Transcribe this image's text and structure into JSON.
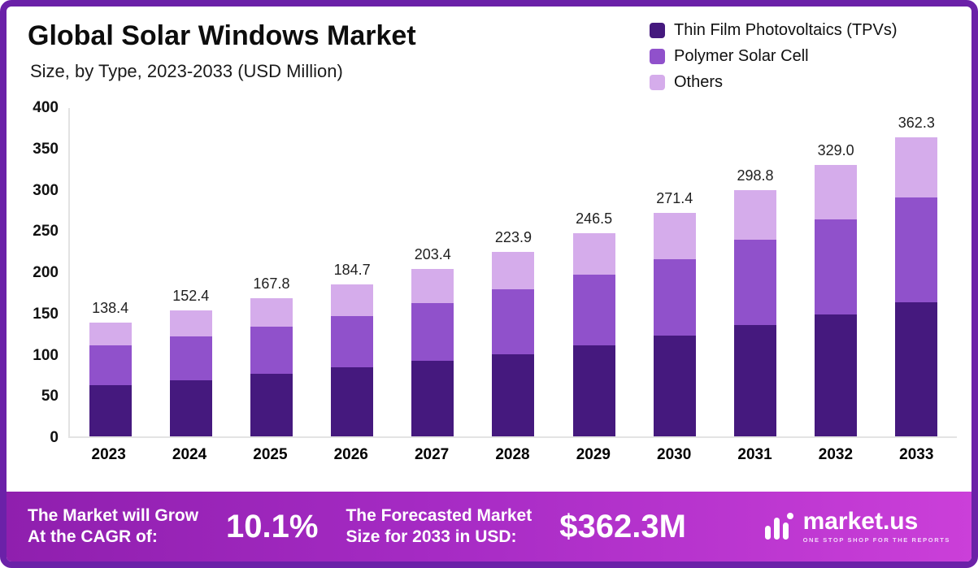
{
  "header": {
    "title": "Global Solar Windows Market",
    "subtitle": "Size, by Type, 2023-2033 (USD Million)"
  },
  "legend": [
    {
      "label": "Thin Film Photovoltaics (TPVs)",
      "color": "#45197e"
    },
    {
      "label": "Polymer Solar Cell",
      "color": "#9051cb"
    },
    {
      "label": "Others",
      "color": "#d5aceb"
    }
  ],
  "chart_data": {
    "type": "bar",
    "stacked": true,
    "title": "Global Solar Windows Market Size, by Type, 2023-2033 (USD Million)",
    "categories": [
      "2023",
      "2024",
      "2025",
      "2026",
      "2027",
      "2028",
      "2029",
      "2030",
      "2031",
      "2032",
      "2033"
    ],
    "series": [
      {
        "name": "Thin Film Photovoltaics (TPVs)",
        "color": "#45197e",
        "values": [
          62,
          68,
          76,
          84,
          92,
          100,
          110,
          122,
          135,
          148,
          163
        ]
      },
      {
        "name": "Polymer Solar Cell",
        "color": "#9051cb",
        "values": [
          48,
          53,
          57,
          62,
          70,
          78,
          86,
          93,
          103,
          115,
          127
        ]
      },
      {
        "name": "Others",
        "color": "#d5aceb",
        "values": [
          28.4,
          31.4,
          34.8,
          38.7,
          41.4,
          45.9,
          50.5,
          56.4,
          60.8,
          66.0,
          72.3
        ]
      }
    ],
    "totals": [
      138.4,
      152.4,
      167.8,
      184.7,
      203.4,
      223.9,
      246.5,
      271.4,
      298.8,
      329.0,
      362.3
    ],
    "total_labels": [
      "138.4",
      "152.4",
      "167.8",
      "184.7",
      "203.4",
      "223.9",
      "246.5",
      "271.4",
      "298.8",
      "329.0",
      "362.3"
    ],
    "ylim": [
      0,
      400
    ],
    "yticks": [
      0,
      50,
      100,
      150,
      200,
      250,
      300,
      350,
      400
    ],
    "xlabel": "",
    "ylabel": "",
    "legend_position": "top-right",
    "grid": false
  },
  "footer": {
    "cagr_label_line1": "The Market will Grow",
    "cagr_label_line2": "At the CAGR of:",
    "cagr_value": "10.1%",
    "forecast_label_line1": "The Forecasted Market",
    "forecast_label_line2": "Size for 2033 in USD:",
    "forecast_value": "$362.3M",
    "brand": "market.us",
    "brand_tagline": "ONE STOP SHOP FOR THE REPORTS"
  }
}
